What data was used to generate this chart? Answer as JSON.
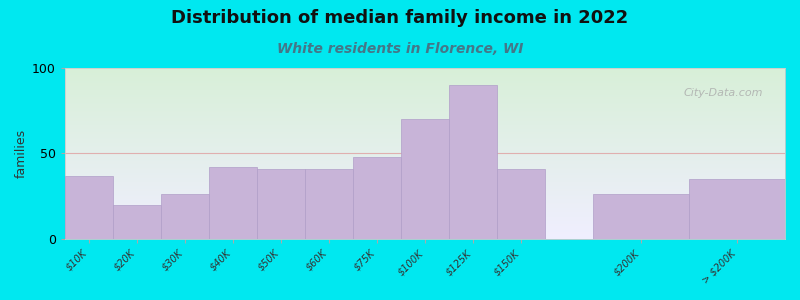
{
  "title": "Distribution of median family income in 2022",
  "subtitle": "White residents in Florence, WI",
  "ylabel": "families",
  "bar_labels": [
    "$10K",
    "$20K",
    "$30K",
    "$40K",
    "$50K",
    "$60K",
    "$75K",
    "$100K",
    "$125K",
    "$150K",
    "$200K",
    "> $200K"
  ],
  "bar_values": [
    37,
    20,
    26,
    42,
    41,
    41,
    48,
    70,
    90,
    41,
    26,
    35
  ],
  "bar_left": [
    0,
    1,
    2,
    3,
    4,
    5,
    6,
    7,
    8,
    9,
    11,
    13
  ],
  "bar_widths": [
    1,
    1,
    1,
    1,
    1,
    1,
    1,
    1,
    1,
    1,
    2,
    2
  ],
  "xlim": [
    0,
    15
  ],
  "ylim": [
    0,
    100
  ],
  "yticks": [
    0,
    50,
    100
  ],
  "tick_positions": [
    0.5,
    1.5,
    2.5,
    3.5,
    4.5,
    5.5,
    6.5,
    7.5,
    8.5,
    9.5,
    12,
    14
  ],
  "tick_labels": [
    "$10K",
    "$20K",
    "$30K",
    "$40K",
    "$50K",
    "$60K",
    "$75K",
    "$100K",
    "$125K",
    "$150K",
    "$200K",
    "> $200K"
  ],
  "bar_color": "#c8b4d8",
  "bar_edge_color": "#b09ec8",
  "background_outer": "#00e8f0",
  "grad_top_color": "#d8f0d8",
  "grad_bottom_color": "#f0eeff",
  "hline_y": 50,
  "hline_color": "#e0a0a0",
  "title_fontsize": 13,
  "subtitle_fontsize": 10,
  "subtitle_color": "#447788",
  "ylabel_fontsize": 9,
  "tick_fontsize": 7,
  "watermark": "City-Data.com",
  "watermark_color": "#aaaaaa",
  "figsize": [
    8.0,
    3.0
  ],
  "dpi": 100
}
